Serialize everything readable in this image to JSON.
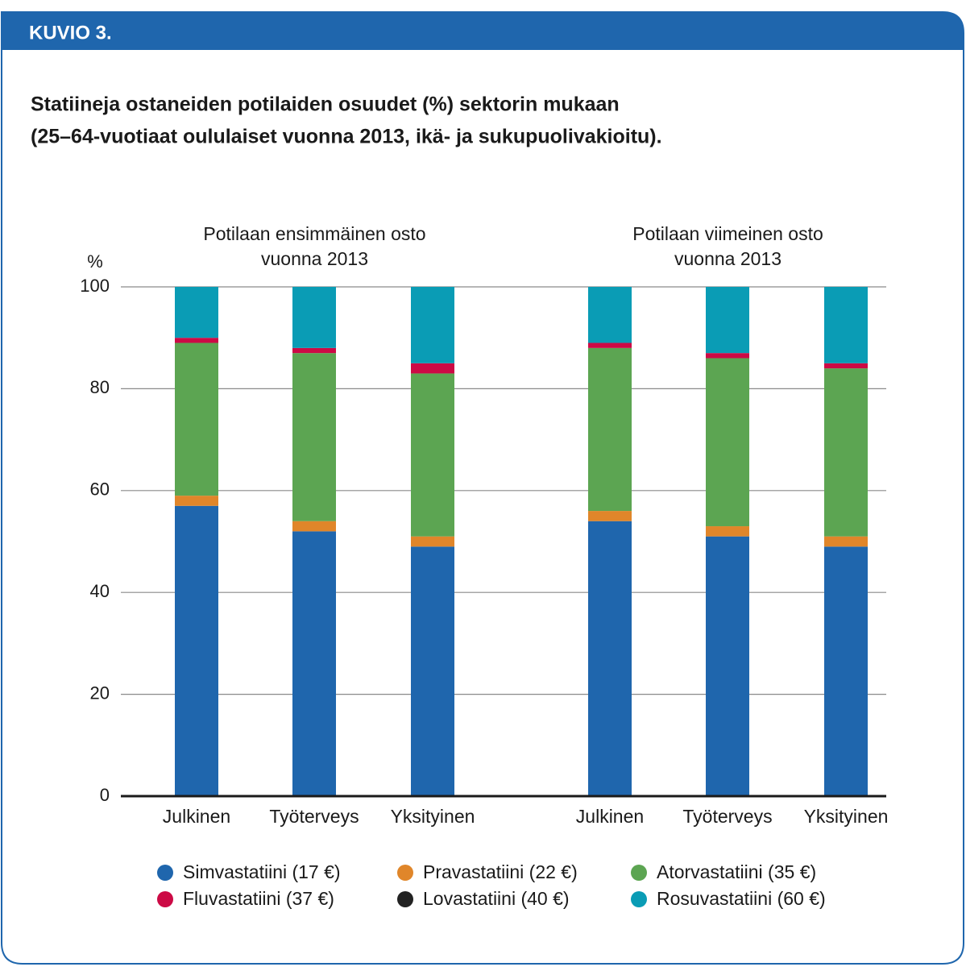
{
  "chart_data": {
    "type": "stacked_bar",
    "label": "KUVIO 3.",
    "title": [
      "Statiineja ostaneiden potilaiden osuudet (%) sektorin mukaan",
      "(25–64-vuotiaat oululaiset vuonna 2013, ikä- ja sukupuolivakioitu)."
    ],
    "ylabel": "%",
    "group_labels": [
      [
        "Potilaan ensimmäinen osto",
        "vuonna 2013"
      ],
      [
        "Potilaan viimeinen osto",
        "vuonna 2013"
      ]
    ],
    "categories": [
      "Julkinen",
      "Työterveys",
      "Yksityinen",
      "Julkinen",
      "Työterveys",
      "Yksityinen"
    ],
    "series": [
      {
        "name": "Simvastatiini (17 €)",
        "color": "#1f66ad",
        "values": [
          57,
          52,
          49,
          54,
          51,
          49
        ]
      },
      {
        "name": "Pravastatiini (22 €)",
        "color": "#e0862a",
        "values": [
          2,
          2,
          2,
          2,
          2,
          2
        ]
      },
      {
        "name": "Atorvastatiini (35 €)",
        "color": "#5ca552",
        "values": [
          30,
          33,
          32,
          32,
          33,
          33
        ]
      },
      {
        "name": "Fluvastatiini (37 €)",
        "color": "#cc0a45",
        "values": [
          1,
          1,
          2,
          1,
          1,
          1
        ]
      },
      {
        "name": "Lovastatiini (40 €)",
        "color": "#222222",
        "values": [
          0,
          0,
          0,
          0,
          0,
          0
        ]
      },
      {
        "name": "Rosuvastatiini (60 €)",
        "color": "#0a9cb5",
        "values": [
          10,
          12,
          15,
          11,
          13,
          15
        ]
      }
    ],
    "ylim": [
      0,
      100
    ],
    "yticks": [
      0,
      20,
      40,
      60,
      80,
      100
    ],
    "grid": true
  }
}
